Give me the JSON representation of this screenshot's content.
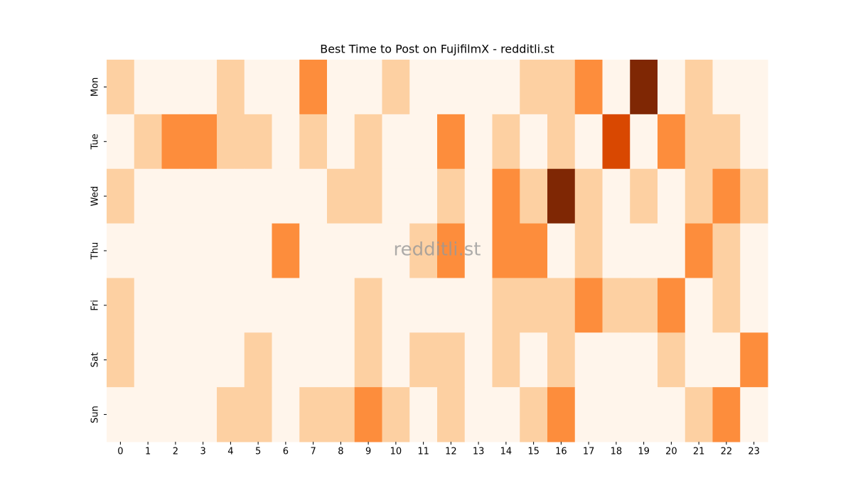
{
  "chart_data": {
    "type": "heatmap",
    "title": "Best Time to Post on FujifilmX - redditli.st",
    "watermark": "redditli.st",
    "x_categories": [
      0,
      1,
      2,
      3,
      4,
      5,
      6,
      7,
      8,
      9,
      10,
      11,
      12,
      13,
      14,
      15,
      16,
      17,
      18,
      19,
      20,
      21,
      22,
      23
    ],
    "y_categories": [
      "Mon",
      "Tue",
      "Wed",
      "Thu",
      "Fri",
      "Sat",
      "Sun"
    ],
    "colormap": [
      "#fff5eb",
      "#fdd0a2",
      "#fd8d3c",
      "#d94801",
      "#7f2704"
    ],
    "values": [
      [
        1,
        0,
        0,
        0,
        1,
        0,
        0,
        2,
        0,
        0,
        1,
        0,
        0,
        0,
        0,
        1,
        1,
        2,
        0,
        4,
        0,
        1,
        0,
        0
      ],
      [
        0,
        1,
        2,
        2,
        1,
        1,
        0,
        1,
        0,
        1,
        0,
        0,
        2,
        0,
        1,
        0,
        1,
        0,
        3,
        0,
        2,
        1,
        1,
        0
      ],
      [
        1,
        0,
        0,
        0,
        0,
        0,
        0,
        0,
        1,
        1,
        0,
        0,
        1,
        0,
        2,
        1,
        4,
        1,
        0,
        1,
        0,
        1,
        2,
        1
      ],
      [
        0,
        0,
        0,
        0,
        0,
        0,
        2,
        0,
        0,
        0,
        0,
        1,
        2,
        0,
        2,
        2,
        0,
        1,
        0,
        0,
        0,
        2,
        1,
        0
      ],
      [
        1,
        0,
        0,
        0,
        0,
        0,
        0,
        0,
        0,
        1,
        0,
        0,
        0,
        0,
        1,
        1,
        1,
        2,
        1,
        1,
        2,
        0,
        1,
        0
      ],
      [
        1,
        0,
        0,
        0,
        0,
        1,
        0,
        0,
        0,
        1,
        0,
        1,
        1,
        0,
        1,
        0,
        1,
        0,
        0,
        0,
        1,
        0,
        0,
        2
      ],
      [
        0,
        0,
        0,
        0,
        1,
        1,
        0,
        1,
        1,
        2,
        1,
        0,
        1,
        0,
        0,
        1,
        2,
        0,
        0,
        0,
        0,
        1,
        2,
        0
      ]
    ]
  }
}
